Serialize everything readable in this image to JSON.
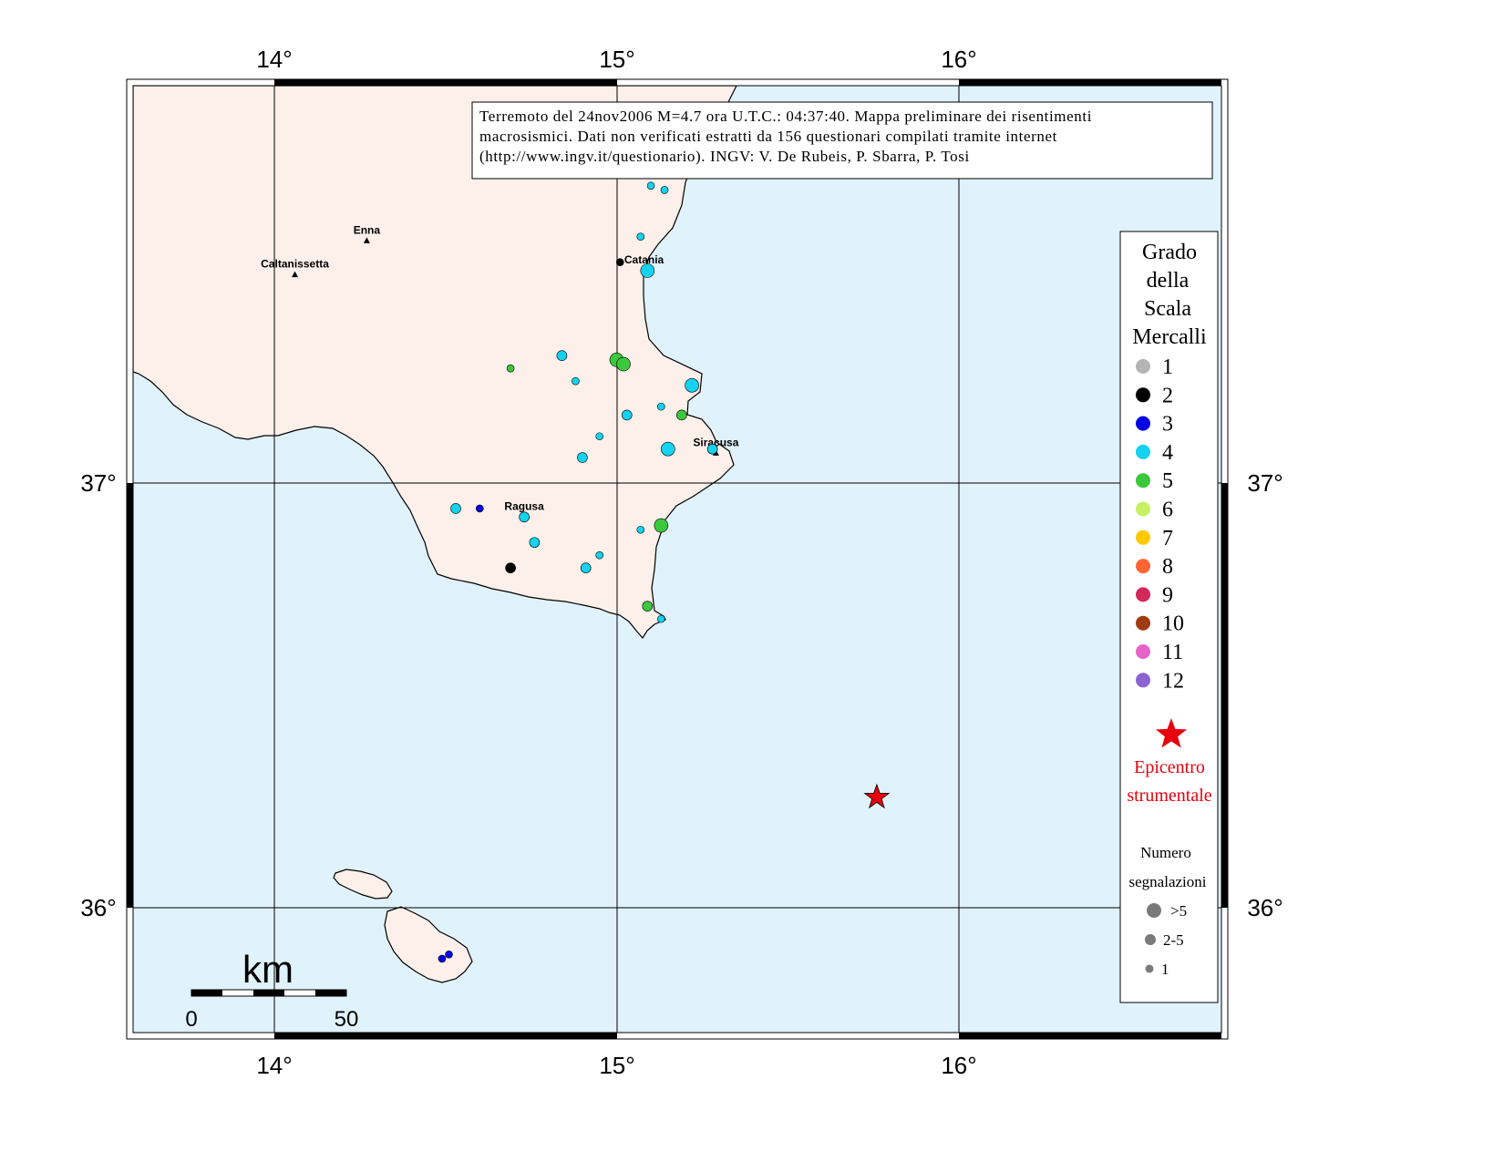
{
  "info_box": {
    "line1": "Terremoto del 24nov2006 M=4.7 ora U.T.C.: 04:37:40.  Mappa preliminare dei risentimenti",
    "line2": "macrosismici.  Dati non verificati estratti da 156 questionari compilati tramite internet",
    "line3": "(http://www.ingv.it/questionario).  INGV: V.  De Rubeis, P.  Sbarra, P.  Tosi"
  },
  "axes": {
    "lon_labels": [
      "14°",
      "15°",
      "16°"
    ],
    "lat_labels": [
      "37°",
      "36°"
    ]
  },
  "colors": {
    "sea": "#e0f2fc",
    "land": "#fdf0ea",
    "star": "#e8000c"
  },
  "cities": [
    {
      "name": "Enna",
      "lon": 14.27,
      "lat": 37.57
    },
    {
      "name": "Caltanissetta",
      "lon": 14.06,
      "lat": 37.49
    },
    {
      "name": "Catania",
      "lon": 15.08,
      "lat": 37.5
    },
    {
      "name": "Siracusa",
      "lon": 15.29,
      "lat": 37.07
    },
    {
      "name": "Ragusa",
      "lon": 14.73,
      "lat": 36.92
    }
  ],
  "legend": {
    "title_lines": [
      "Grado",
      "della",
      "Scala",
      "Mercalli"
    ],
    "grades": [
      {
        "label": "1",
        "color": "#b4b4b4"
      },
      {
        "label": "2",
        "color": "#000000"
      },
      {
        "label": "3",
        "color": "#0000e6"
      },
      {
        "label": "4",
        "color": "#14d2f0"
      },
      {
        "label": "5",
        "color": "#3cc83c"
      },
      {
        "label": "6",
        "color": "#c8f064"
      },
      {
        "label": "7",
        "color": "#ffc800"
      },
      {
        "label": "8",
        "color": "#ff6432"
      },
      {
        "label": "9",
        "color": "#d2285a"
      },
      {
        "label": "10",
        "color": "#a03c14"
      },
      {
        "label": "11",
        "color": "#e664c8"
      },
      {
        "label": "12",
        "color": "#8c64d2"
      }
    ],
    "epicenter_lines": [
      "Epicentro",
      "strumentale"
    ],
    "count_title_lines": [
      "Numero",
      "segnalazioni"
    ],
    "count_sizes": [
      ">5",
      "2-5",
      "1"
    ]
  },
  "scale_bar": {
    "unit": "km",
    "start_label": "0",
    "end_label": "50"
  },
  "epicenter": {
    "lon": 15.76,
    "lat": 36.26
  },
  "reports": [
    {
      "lon": 15.1,
      "lat": 37.7,
      "grade": 4,
      "count": "1"
    },
    {
      "lon": 15.14,
      "lat": 37.69,
      "grade": 4,
      "count": "1"
    },
    {
      "lon": 15.07,
      "lat": 37.58,
      "grade": 4,
      "count": "1"
    },
    {
      "lon": 15.01,
      "lat": 37.52,
      "grade": 2,
      "count": "1"
    },
    {
      "lon": 15.09,
      "lat": 37.5,
      "grade": 4,
      "count": ">5"
    },
    {
      "lon": 14.84,
      "lat": 37.3,
      "grade": 4,
      "count": "2-5"
    },
    {
      "lon": 14.69,
      "lat": 37.27,
      "grade": 5,
      "count": "1"
    },
    {
      "lon": 15.0,
      "lat": 37.29,
      "grade": 5,
      "count": ">5"
    },
    {
      "lon": 15.02,
      "lat": 37.28,
      "grade": 5,
      "count": ">5"
    },
    {
      "lon": 14.88,
      "lat": 37.24,
      "grade": 4,
      "count": "1"
    },
    {
      "lon": 15.22,
      "lat": 37.23,
      "grade": 4,
      "count": ">5"
    },
    {
      "lon": 15.13,
      "lat": 37.18,
      "grade": 4,
      "count": "1"
    },
    {
      "lon": 15.03,
      "lat": 37.16,
      "grade": 4,
      "count": "2-5"
    },
    {
      "lon": 15.19,
      "lat": 37.16,
      "grade": 5,
      "count": "2-5"
    },
    {
      "lon": 14.95,
      "lat": 37.11,
      "grade": 4,
      "count": "1"
    },
    {
      "lon": 15.15,
      "lat": 37.08,
      "grade": 4,
      "count": ">5"
    },
    {
      "lon": 15.28,
      "lat": 37.08,
      "grade": 4,
      "count": "2-5"
    },
    {
      "lon": 14.9,
      "lat": 37.06,
      "grade": 4,
      "count": "2-5"
    },
    {
      "lon": 14.53,
      "lat": 36.94,
      "grade": 4,
      "count": "2-5"
    },
    {
      "lon": 14.6,
      "lat": 36.94,
      "grade": 3,
      "count": "1"
    },
    {
      "lon": 14.73,
      "lat": 36.92,
      "grade": 4,
      "count": "2-5"
    },
    {
      "lon": 15.13,
      "lat": 36.9,
      "grade": 5,
      "count": ">5"
    },
    {
      "lon": 15.07,
      "lat": 36.89,
      "grade": 4,
      "count": "1"
    },
    {
      "lon": 14.76,
      "lat": 36.86,
      "grade": 4,
      "count": "2-5"
    },
    {
      "lon": 14.95,
      "lat": 36.83,
      "grade": 4,
      "count": "1"
    },
    {
      "lon": 14.69,
      "lat": 36.8,
      "grade": 2,
      "count": "2-5"
    },
    {
      "lon": 14.91,
      "lat": 36.8,
      "grade": 4,
      "count": "2-5"
    },
    {
      "lon": 15.09,
      "lat": 36.71,
      "grade": 5,
      "count": "2-5"
    },
    {
      "lon": 15.13,
      "lat": 36.68,
      "grade": 4,
      "count": "1"
    },
    {
      "lon": 14.51,
      "lat": 35.89,
      "grade": 3,
      "count": "1"
    },
    {
      "lon": 14.49,
      "lat": 35.88,
      "grade": 3,
      "count": "1"
    }
  ]
}
